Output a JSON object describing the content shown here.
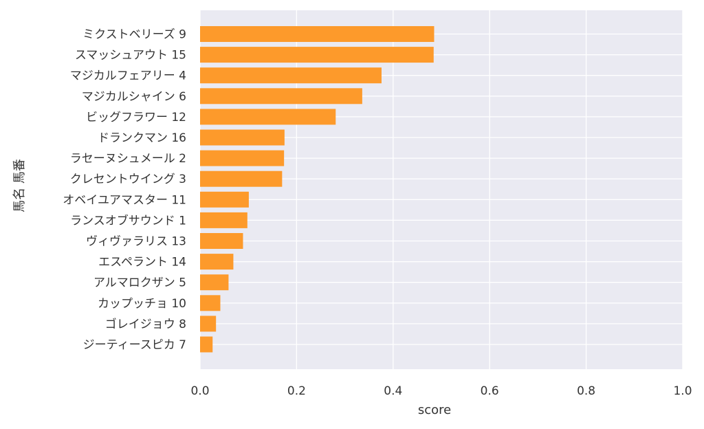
{
  "chart_data": {
    "type": "bar",
    "orientation": "horizontal",
    "categories": [
      "ミクストベリーズ 9",
      "スマッシュアウト 15",
      "マジカルフェアリー 4",
      "マジカルシャイン 6",
      "ビッグフラワー 12",
      "ドランクマン 16",
      "ラセーヌシュメール 2",
      "クレセントウイング 3",
      "オベイユアマスター 11",
      "ランスオブサウンド 1",
      "ヴィヴァラリス 13",
      "エスペラント 14",
      "アルマロクザン 5",
      "カップッチョ 10",
      "ゴレイジョウ 8",
      "ジーティースピカ 7"
    ],
    "values": [
      0.485,
      0.484,
      0.376,
      0.336,
      0.281,
      0.175,
      0.174,
      0.17,
      0.101,
      0.098,
      0.089,
      0.069,
      0.059,
      0.042,
      0.033,
      0.026
    ],
    "xlabel": "score",
    "ylabel": "馬名 馬番",
    "xlim": [
      0,
      1.0
    ],
    "xticks": [
      "0.0",
      "0.2",
      "0.4",
      "0.6",
      "0.8",
      "1.0"
    ],
    "grid": true,
    "colors": {
      "bar": "#fd9a2b",
      "background": "#eaeaf2",
      "grid": "#ffffff",
      "text": "#333333"
    }
  }
}
